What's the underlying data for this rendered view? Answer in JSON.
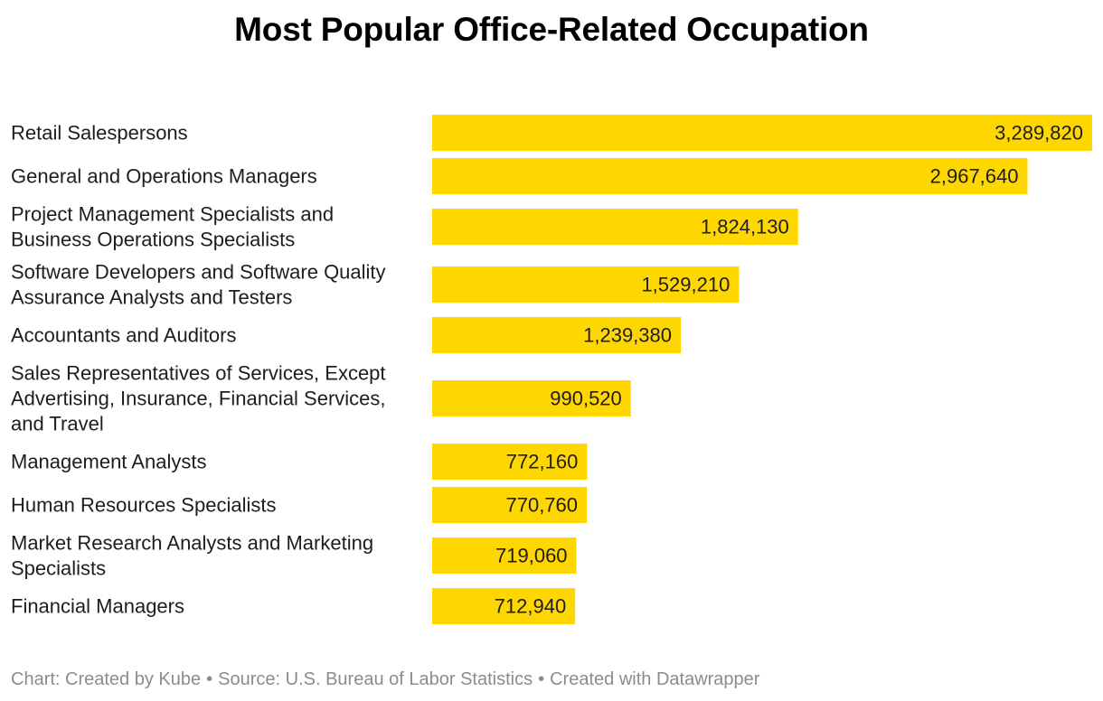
{
  "chart_data": {
    "type": "bar",
    "orientation": "horizontal",
    "title": "Most Popular Office-Related Occupation",
    "categories": [
      [
        "Retail Salespersons"
      ],
      [
        "General and Operations Managers"
      ],
      [
        "Project Management Specialists and",
        "Business Operations Specialists"
      ],
      [
        "Software Developers and Software Quality",
        "Assurance Analysts and Testers"
      ],
      [
        "Accountants and Auditors"
      ],
      [
        "Sales Representatives of Services, Except",
        "Advertising, Insurance, Financial Services,",
        "and Travel"
      ],
      [
        "Management Analysts"
      ],
      [
        "Human Resources Specialists"
      ],
      [
        "Market Research Analysts and Marketing",
        "Specialists"
      ],
      [
        "Financial Managers"
      ]
    ],
    "values": [
      3289820,
      2967640,
      1824130,
      1529210,
      1239380,
      990520,
      772160,
      770760,
      719060,
      712940
    ],
    "value_labels": [
      "3,289,820",
      "2,967,640",
      "1,824,130",
      "1,529,210",
      "1,239,380",
      "990,520",
      "772,160",
      "770,760",
      "719,060",
      "712,940"
    ],
    "xlim": [
      0,
      3289820
    ],
    "bar_color": "#ffd700",
    "xlabel": "",
    "ylabel": ""
  },
  "footer": {
    "credit": "Chart: Created by Kube",
    "separator": "•",
    "source": "Source: U.S. Bureau of Labor Statistics",
    "tool": "Created with Datawrapper"
  }
}
